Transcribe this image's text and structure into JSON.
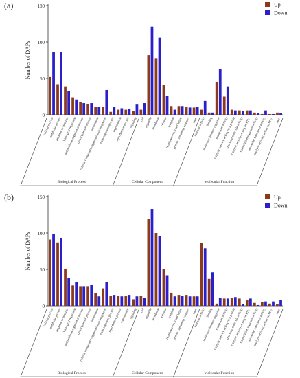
{
  "colors": {
    "up": "#8B3A1C",
    "down": "#2A1FC9",
    "axis": "#333333"
  },
  "chart_data": [
    {
      "type": "bar",
      "panel_label": "(a)",
      "ylabel": "Number of DAPs",
      "ylim": [
        0,
        150
      ],
      "yticks": [
        0,
        50,
        100,
        150
      ],
      "legend": [
        "Up",
        "Down"
      ],
      "legend_position": "top-right",
      "series": [
        {
          "name": "Up",
          "values": [
            52,
            42,
            39,
            24,
            17,
            15,
            11,
            11,
            4,
            7,
            7,
            5,
            7,
            82,
            77,
            41,
            12,
            12,
            11,
            10,
            7,
            3,
            45,
            25,
            7,
            6,
            6,
            3,
            1,
            1,
            3
          ]
        },
        {
          "name": "Down",
          "values": [
            86,
            86,
            33,
            21,
            16,
            16,
            11,
            34,
            11,
            9,
            8,
            14,
            16,
            121,
            106,
            26,
            7,
            12,
            10,
            11,
            19,
            3,
            63,
            39,
            6,
            5,
            6,
            2,
            6,
            1,
            2
          ]
        }
      ],
      "categories": [
        "cellular process",
        "metabolic process",
        "response to stimulus",
        "biological regulation",
        "multicellular organismal process",
        "developmental process",
        "localization",
        "cellular component organization or biogenesis",
        "multi-organism process",
        "reproduction",
        "reproductive process",
        "signaling",
        "cell",
        "organelle",
        "membrane",
        "cell part",
        "symplast",
        "membrane-enclosed lumen",
        "protein-containing complex",
        "other",
        "catalytic activity",
        "binding",
        "molecular function regulator",
        "transporter activity",
        "catalytic activity, acting on a protein",
        "structural molecule activity",
        "catalytic activity, acting on RNA",
        "transcription regulator activity",
        "molecular transducer activity",
        "catalytic activity, acting on DNA",
        "other"
      ],
      "groups": [
        {
          "label": "Biological Process",
          "count": 12
        },
        {
          "label": "Cellular Component",
          "count": 8
        },
        {
          "label": "Molecular Function",
          "count": 11
        }
      ]
    },
    {
      "type": "bar",
      "panel_label": "(b)",
      "ylabel": "Number of DAPs",
      "ylim": [
        0,
        150
      ],
      "yticks": [
        0,
        50,
        100,
        150
      ],
      "legend": [
        "Up",
        "Down"
      ],
      "legend_position": "top-right",
      "series": [
        {
          "name": "Up",
          "values": [
            91,
            87,
            51,
            28,
            27,
            27,
            17,
            24,
            14,
            14,
            14,
            9,
            14,
            119,
            100,
            50,
            18,
            15,
            15,
            13,
            86,
            37,
            3,
            10,
            11,
            10,
            8,
            4,
            5,
            3,
            2
          ]
        },
        {
          "name": "Down",
          "values": [
            99,
            93,
            38,
            33,
            27,
            29,
            13,
            33,
            15,
            13,
            15,
            13,
            11,
            133,
            96,
            42,
            13,
            14,
            13,
            13,
            79,
            46,
            11,
            10,
            12,
            2,
            10,
            1,
            6,
            6,
            8
          ]
        }
      ],
      "categories": [
        "cellular process",
        "metabolic process",
        "response to stimulus",
        "biological regulation",
        "multicellular organismal process",
        "developmental process",
        "localization",
        "cellular component organization or biogenesis",
        "multi-organism process",
        "reproductive process",
        "reproduction",
        "signaling",
        "cell",
        "organelle",
        "membrane",
        "cell part",
        "symplast",
        "membrane-enclosed lumen",
        "protein-containing complex",
        "other",
        "catalytic activity",
        "binding",
        "molecular function regulator",
        "transporter activity",
        "catalytic activity, acting on a protein",
        "structural molecule activity",
        "catalytic activity, acting on RNA",
        "transcription regulator activity",
        "molecular transducer activity",
        "catalytic activity, acting on DNA",
        "other"
      ],
      "groups": [
        {
          "label": "Biological Process",
          "count": 12
        },
        {
          "label": "Cellular Component",
          "count": 8
        },
        {
          "label": "Molecular Function",
          "count": 11
        }
      ]
    }
  ]
}
